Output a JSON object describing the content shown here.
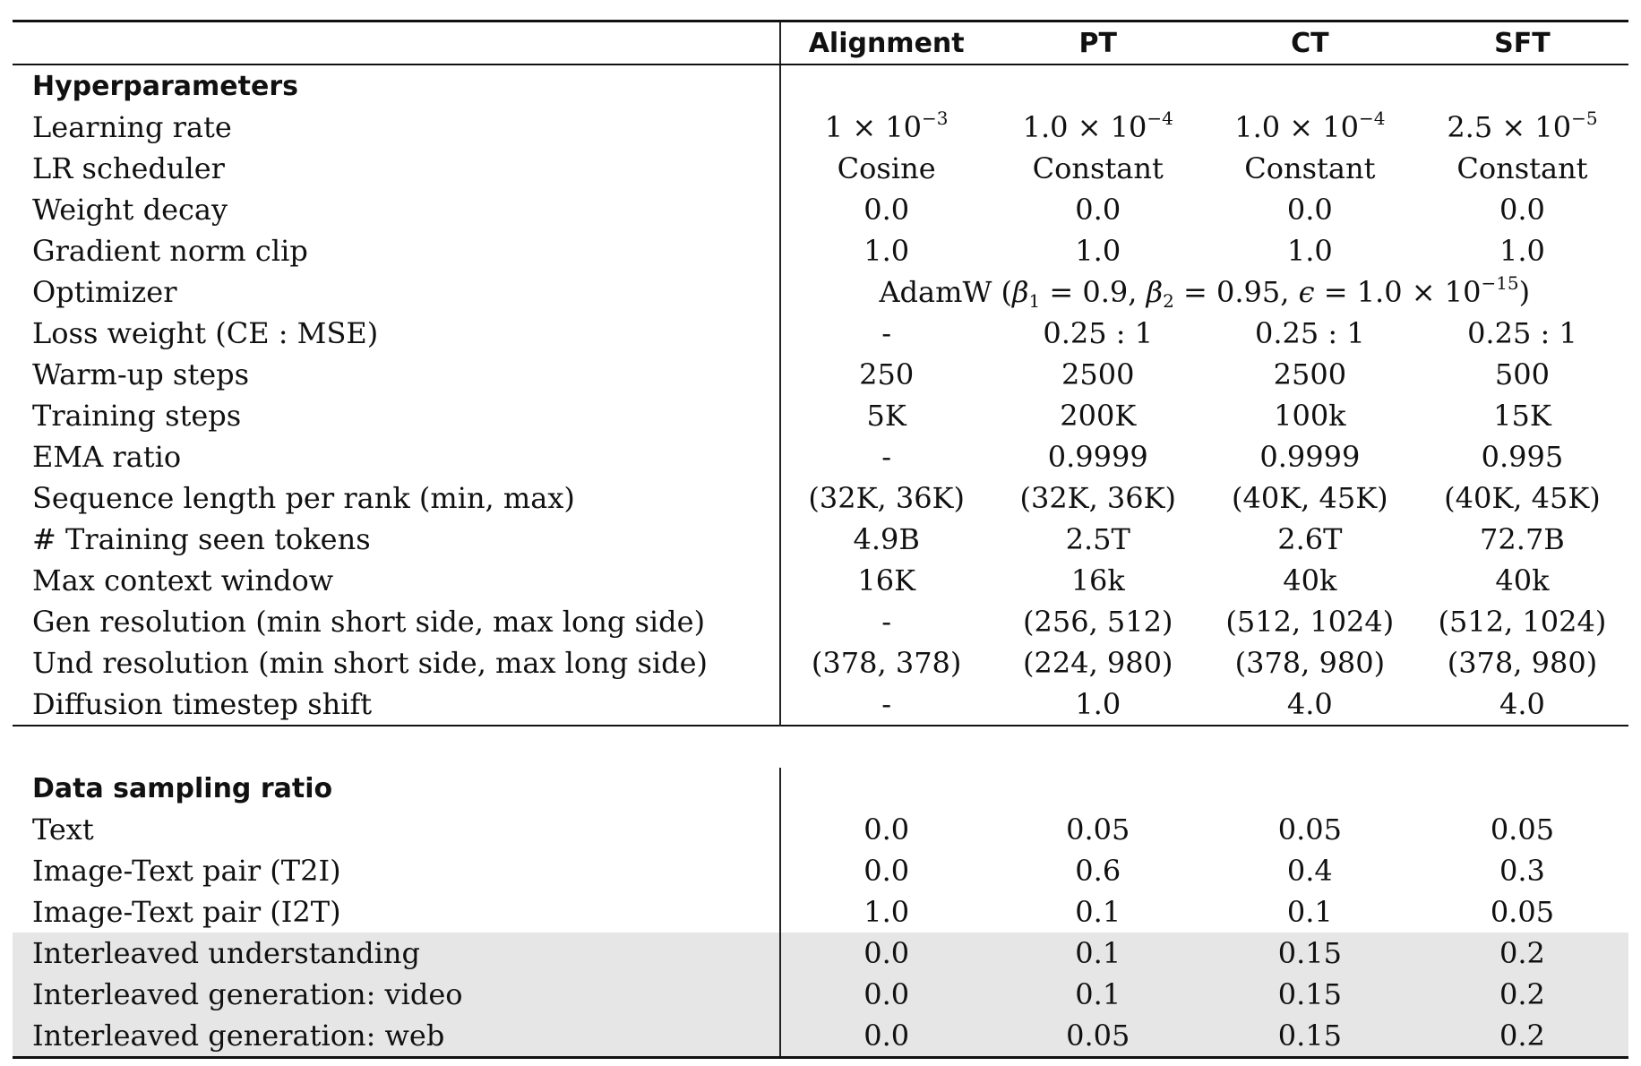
{
  "columns": [
    "Alignment",
    "PT",
    "CT",
    "SFT"
  ],
  "sections": {
    "hyperparameters": "Hyperparameters",
    "data_sampling": "Data sampling ratio"
  },
  "learning_rate": {
    "label": "Learning rate",
    "values": [
      {
        "mantissa": "1",
        "exponent": "−3"
      },
      {
        "mantissa": "1.0",
        "exponent": "−4"
      },
      {
        "mantissa": "1.0",
        "exponent": "−4"
      },
      {
        "mantissa": "2.5",
        "exponent": "−5"
      }
    ]
  },
  "rows1": [
    {
      "label": "LR scheduler",
      "values": [
        "Cosine",
        "Constant",
        "Constant",
        "Constant"
      ]
    },
    {
      "label": "Weight decay",
      "values": [
        "0.0",
        "0.0",
        "0.0",
        "0.0"
      ]
    },
    {
      "label": "Gradient norm clip",
      "values": [
        "1.0",
        "1.0",
        "1.0",
        "1.0"
      ]
    }
  ],
  "optimizer": {
    "label": "Optimizer",
    "name": "AdamW",
    "beta1": "0.9",
    "beta2": "0.95",
    "epsilon_mantissa": "1.0",
    "epsilon_exponent": "−15"
  },
  "rows2": [
    {
      "label": "Loss weight (CE : MSE)",
      "values": [
        "-",
        "0.25 : 1",
        "0.25 : 1",
        "0.25 : 1"
      ]
    },
    {
      "label": "Warm-up steps",
      "values": [
        "250",
        "2500",
        "2500",
        "500"
      ]
    },
    {
      "label": "Training steps",
      "values": [
        "5K",
        "200K",
        "100k",
        "15K"
      ]
    },
    {
      "label": "EMA ratio",
      "values": [
        "-",
        "0.9999",
        "0.9999",
        "0.995"
      ]
    },
    {
      "label": "Sequence length per rank (min, max)",
      "values": [
        "(32K, 36K)",
        "(32K, 36K)",
        "(40K, 45K)",
        "(40K, 45K)"
      ]
    },
    {
      "label": "# Training seen tokens",
      "values": [
        "4.9B",
        "2.5T",
        "2.6T",
        "72.7B"
      ]
    },
    {
      "label": "Max context window",
      "values": [
        "16K",
        "16k",
        "40k",
        "40k"
      ]
    },
    {
      "label": "Gen resolution (min short side, max long side)",
      "values": [
        "-",
        "(256, 512)",
        "(512, 1024)",
        "(512, 1024)"
      ]
    },
    {
      "label": "Und resolution (min short side, max long side)",
      "values": [
        "(378, 378)",
        "(224, 980)",
        "(378, 980)",
        "(378, 980)"
      ]
    },
    {
      "label": "Diffusion timestep shift",
      "values": [
        "-",
        "1.0",
        "4.0",
        "4.0"
      ]
    }
  ],
  "rows3": [
    {
      "label": "Text",
      "values": [
        "0.0",
        "0.05",
        "0.05",
        "0.05"
      ]
    },
    {
      "label": "Image-Text pair (T2I)",
      "values": [
        "0.0",
        "0.6",
        "0.4",
        "0.3"
      ]
    },
    {
      "label": "Image-Text pair (I2T)",
      "values": [
        "1.0",
        "0.1",
        "0.1",
        "0.05"
      ]
    },
    {
      "label": "Interleaved understanding",
      "values": [
        "0.0",
        "0.1",
        "0.15",
        "0.2"
      ]
    },
    {
      "label": "Interleaved generation: video",
      "values": [
        "0.0",
        "0.1",
        "0.15",
        "0.2"
      ]
    },
    {
      "label": "Interleaved generation: web",
      "values": [
        "0.0",
        "0.05",
        "0.15",
        "0.2"
      ]
    }
  ]
}
